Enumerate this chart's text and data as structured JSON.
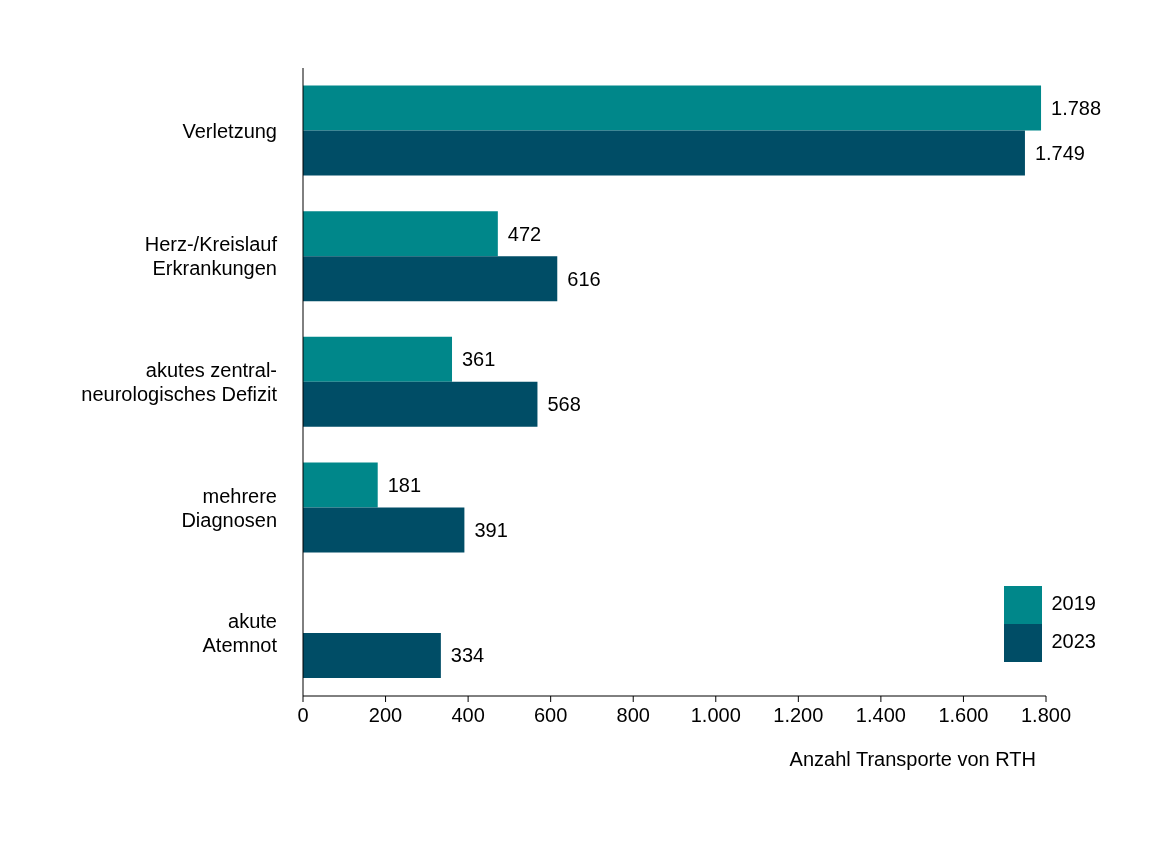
{
  "chart_data": {
    "type": "bar",
    "orientation": "horizontal",
    "xlabel": "Anzahl Transporte von RTH",
    "categories": [
      "Verletzung",
      "Herz-/Kreislauf\nErkrankungen",
      "akutes zentral-\nneurologisches Defizit",
      "mehrere\nDiagnosen",
      "akute\nAtemnot"
    ],
    "series": [
      {
        "name": "2019",
        "color": "#00878a",
        "values": [
          1788,
          472,
          361,
          181,
          null
        ],
        "value_labels": [
          "1.788",
          "472",
          "361",
          "181",
          null
        ]
      },
      {
        "name": "2023",
        "color": "#004d66",
        "values": [
          1749,
          616,
          568,
          391,
          334
        ],
        "value_labels": [
          "1.749",
          "616",
          "568",
          "391",
          "334"
        ]
      }
    ],
    "xlim": [
      0,
      1800
    ],
    "xticks": [
      0,
      200,
      400,
      600,
      800,
      {
        "value": 1000,
        "label": "1.000"
      },
      {
        "value": 1200,
        "label": "1.200"
      },
      {
        "value": 1400,
        "label": "1.400"
      },
      {
        "value": 1600,
        "label": "1.600"
      },
      {
        "value": 1800,
        "label": "1.800"
      }
    ],
    "legend": "bottom right",
    "grid": false
  }
}
